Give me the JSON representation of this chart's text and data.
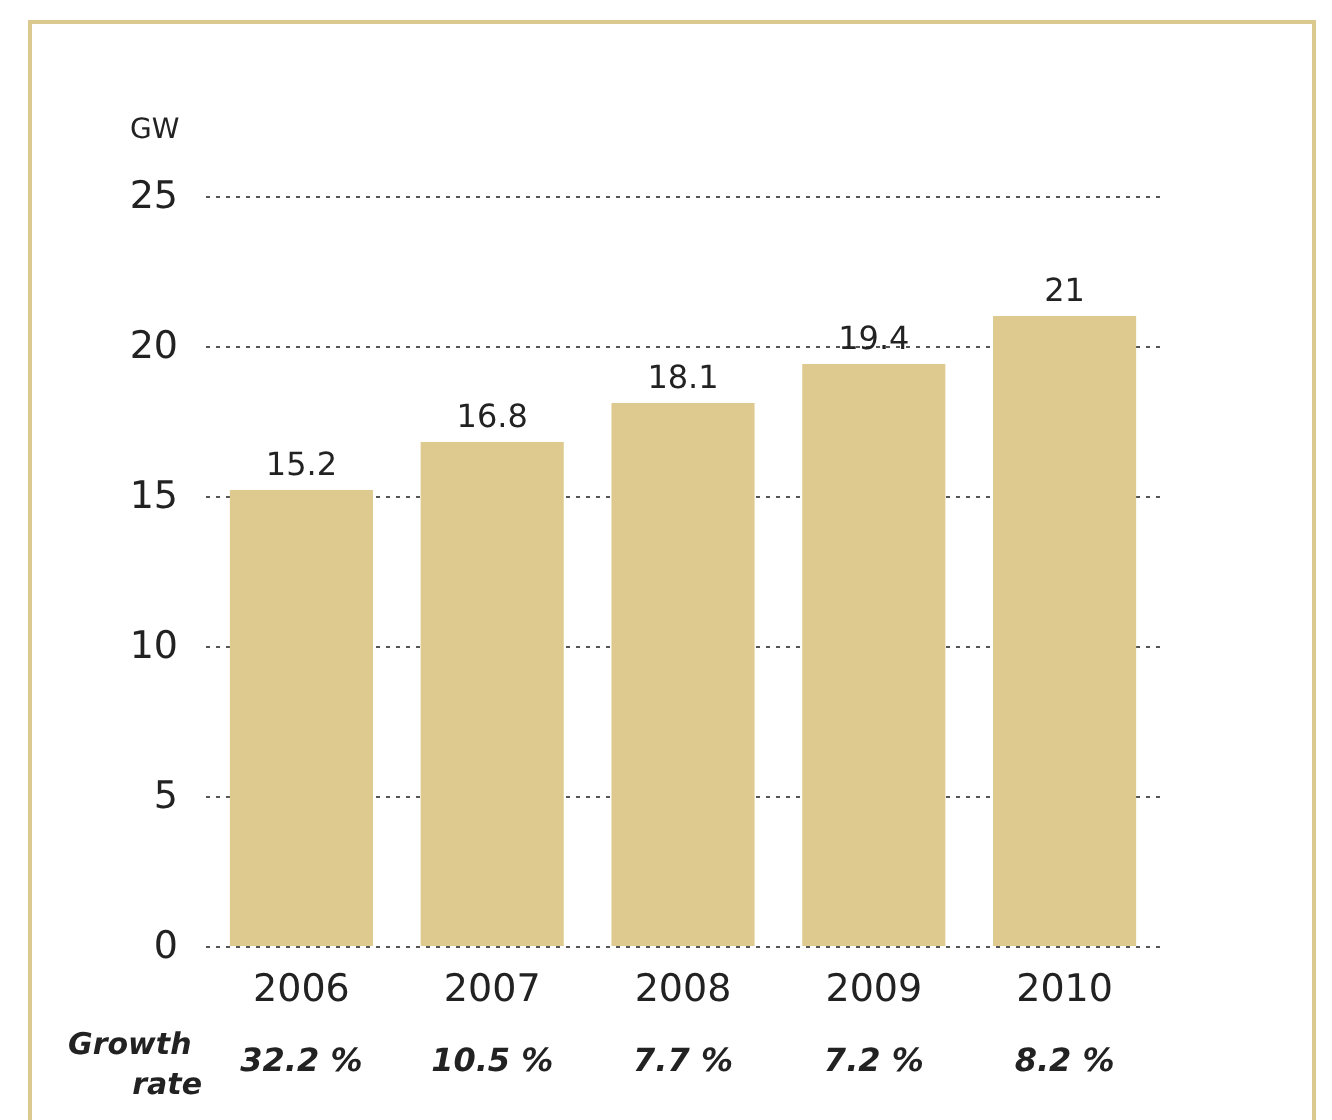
{
  "chart_data": {
    "type": "bar",
    "ylabel": "GW",
    "categories": [
      "2006",
      "2007",
      "2008",
      "2009",
      "2010"
    ],
    "values": [
      15.2,
      16.8,
      18.1,
      19.4,
      21
    ],
    "color": "#dec98f",
    "data_labels": true,
    "ylim": [
      0,
      25
    ],
    "yticks": [
      0,
      5,
      10,
      15,
      20,
      25
    ],
    "grid": "y",
    "annotations": [
      "Growth rate",
      "32.2 %",
      "10.5 %",
      "7.7 %",
      "7.2 %",
      "8.2 %"
    ]
  }
}
